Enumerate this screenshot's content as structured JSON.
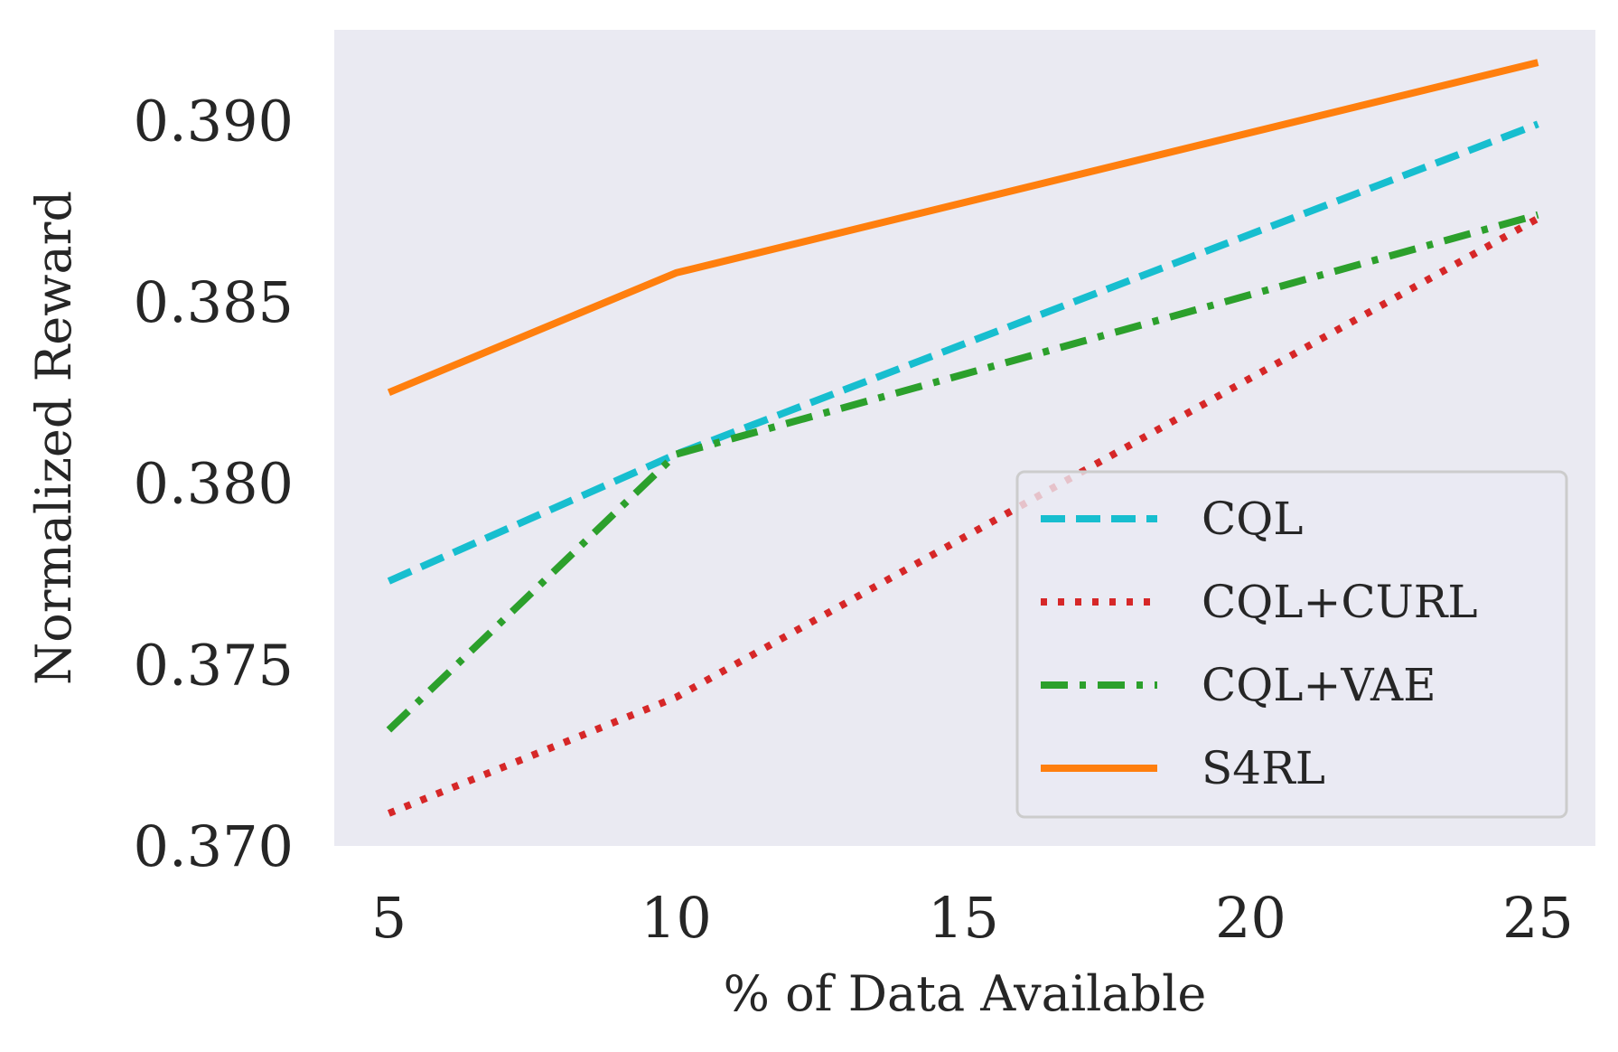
{
  "chart_data": {
    "type": "line",
    "title": "",
    "xlabel": "% of Data Available",
    "ylabel": "Normalized Reward",
    "x": [
      5,
      10,
      25
    ],
    "xlim": [
      4.05,
      26.0
    ],
    "ylim": [
      0.37,
      0.3925
    ],
    "xticks": [
      "5",
      "10",
      "15",
      "20",
      "25"
    ],
    "yticks": [
      "0.370",
      "0.375",
      "0.380",
      "0.385",
      "0.390"
    ],
    "grid": false,
    "legend_position": "lower-right",
    "series": [
      {
        "name": "CQL",
        "style": "dashed",
        "color": "#17becf",
        "values": [
          0.3773,
          0.3808,
          0.3899
        ]
      },
      {
        "name": "CQL+CURL",
        "style": "dotted",
        "color": "#d62728",
        "values": [
          0.3709,
          0.3741,
          0.3873
        ]
      },
      {
        "name": "CQL+VAE",
        "style": "dashdot",
        "color": "#2ca02c",
        "values": [
          0.3732,
          0.3808,
          0.3874
        ]
      },
      {
        "name": "S4RL",
        "style": "solid",
        "color": "#ff7f0e",
        "values": [
          0.3825,
          0.3858,
          0.3916
        ]
      }
    ]
  },
  "colors": {
    "plot_background": "#eaeaf2",
    "text": "#262626",
    "legend_border": "#cccccc"
  }
}
